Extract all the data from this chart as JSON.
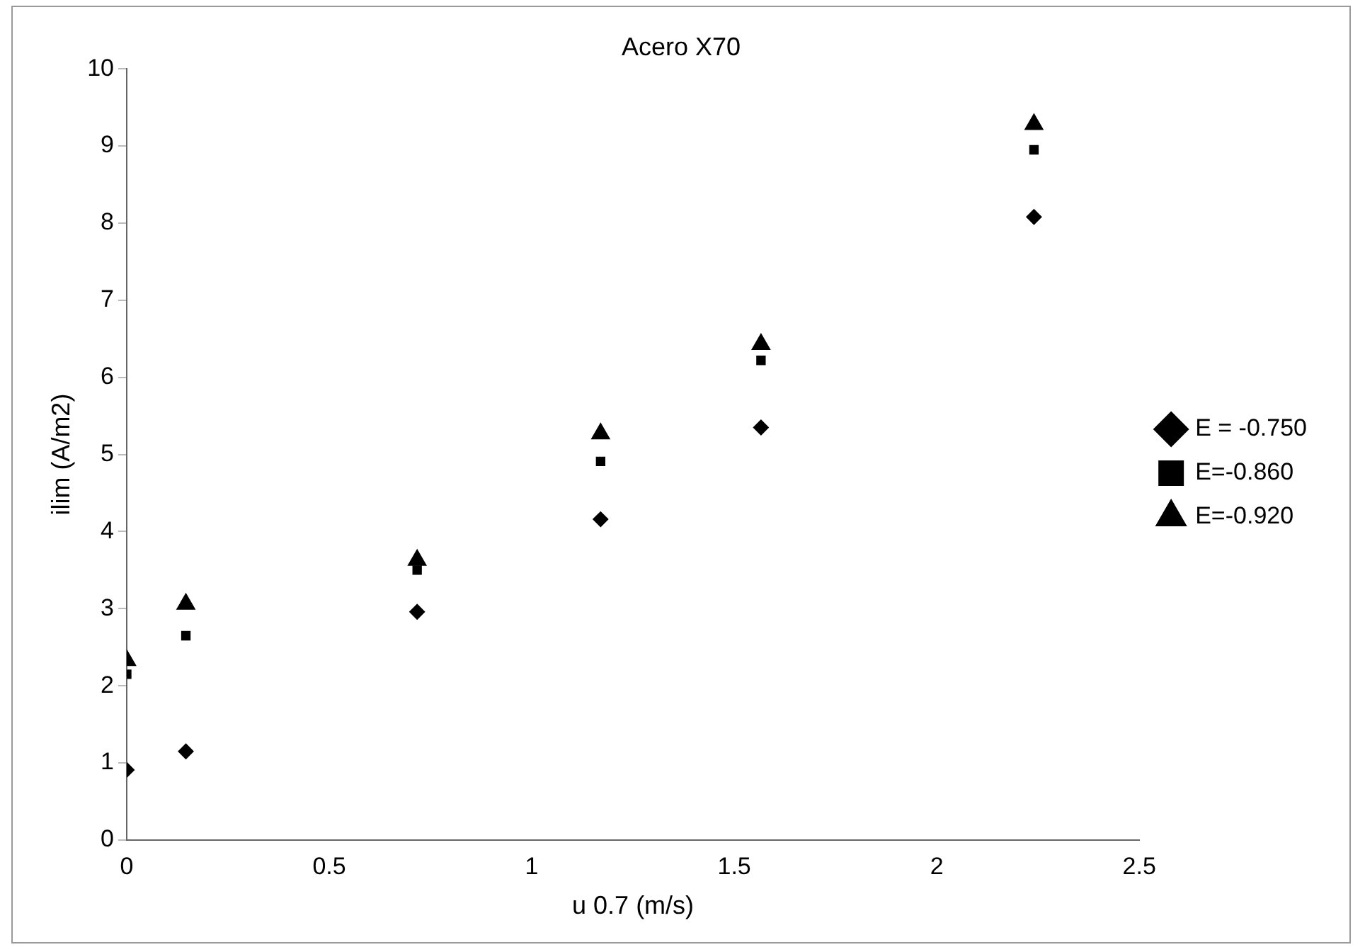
{
  "chart_data": {
    "type": "scatter",
    "title": "Acero X70",
    "xlabel": "u 0.7 (m/s)",
    "ylabel": "ilim (A/m2)",
    "x": [
      0,
      0.146,
      0.717,
      1.17,
      1.566,
      2.24
    ],
    "series": [
      {
        "name": "E = -0.750",
        "color": "#000000",
        "marker": "diamond",
        "values": [
          0.91,
          1.15,
          2.96,
          4.16,
          5.35,
          8.08
        ]
      },
      {
        "name": "E=-0.860",
        "color": "#000000",
        "marker": "square",
        "values": [
          2.15,
          2.65,
          3.5,
          4.91,
          6.22,
          8.95
        ]
      },
      {
        "name": "E=-0.920",
        "color": "#000000",
        "marker": "triangle",
        "values": [
          2.33,
          3.06,
          3.63,
          5.27,
          6.43,
          9.28
        ]
      }
    ],
    "xlim": [
      0,
      2.5
    ],
    "xticks": [
      0,
      0.5,
      1,
      1.5,
      2,
      2.5
    ],
    "ylim": [
      0,
      10
    ],
    "yticks": [
      0,
      1,
      2,
      3,
      4,
      5,
      6,
      7,
      8,
      9,
      10
    ],
    "grid": false,
    "legend": "right"
  }
}
